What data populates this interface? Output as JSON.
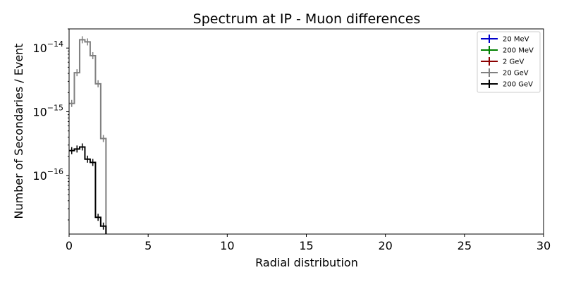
{
  "chart_data": {
    "type": "step",
    "title": "Spectrum at IP - Muon differences",
    "xlabel": "Radial distribution",
    "ylabel": "Number of Secondaries / Event",
    "xlim": [
      0,
      30
    ],
    "ylim": [
      1.2e-17,
      2e-14
    ],
    "yscale": "log",
    "x_ticks": [
      0,
      5,
      10,
      15,
      20,
      25,
      30
    ],
    "y_ticks": [
      {
        "value": 1e-16,
        "base": "10",
        "exp": "−16"
      },
      {
        "value": 1e-15,
        "base": "10",
        "exp": "−15"
      },
      {
        "value": 1e-14,
        "base": "10",
        "exp": "−14"
      }
    ],
    "grid": false,
    "legend_position": "top-right",
    "bin_edges": [
      0,
      0.333,
      0.667,
      1.0,
      1.333,
      1.667,
      2.0,
      2.333
    ],
    "series": [
      {
        "name": "20 MeV",
        "color": "#0000cc",
        "bins": []
      },
      {
        "name": "200 MeV",
        "color": "#008000",
        "bins": []
      },
      {
        "name": "2 GeV",
        "color": "#8b0000",
        "bins": []
      },
      {
        "name": "20 GeV",
        "color": "#808080",
        "bins": [
          {
            "x0": 0.0,
            "x1": 0.333,
            "y": 1.35e-15
          },
          {
            "x0": 0.333,
            "x1": 0.667,
            "y": 4.1e-15
          },
          {
            "x0": 0.667,
            "x1": 1.0,
            "y": 1.35e-14
          },
          {
            "x0": 1.0,
            "x1": 1.333,
            "y": 1.25e-14
          },
          {
            "x0": 1.333,
            "x1": 1.667,
            "y": 7.6e-15
          },
          {
            "x0": 1.667,
            "x1": 2.0,
            "y": 2.75e-15
          },
          {
            "x0": 2.0,
            "x1": 2.333,
            "y": 3.8e-16
          }
        ]
      },
      {
        "name": "200 GeV",
        "color": "#000000",
        "bins": [
          {
            "x0": 0.0,
            "x1": 0.333,
            "y": 2.45e-16
          },
          {
            "x0": 0.333,
            "x1": 0.667,
            "y": 2.6e-16
          },
          {
            "x0": 0.667,
            "x1": 1.0,
            "y": 2.8e-16
          },
          {
            "x0": 1.0,
            "x1": 1.333,
            "y": 1.8e-16
          },
          {
            "x0": 1.333,
            "x1": 1.667,
            "y": 1.6e-16
          },
          {
            "x0": 1.667,
            "x1": 2.0,
            "y": 2.2e-17
          },
          {
            "x0": 2.0,
            "x1": 2.333,
            "y": 1.6e-17
          }
        ]
      }
    ]
  }
}
